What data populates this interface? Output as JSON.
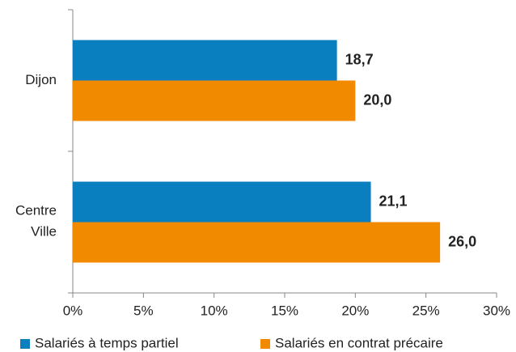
{
  "chart_data": {
    "type": "hbar",
    "categories": [
      "Dijon",
      "Centre Ville"
    ],
    "series": [
      {
        "name": "Salariés à temps partiel",
        "color": "#0a7fbf",
        "values": [
          18.7,
          21.1
        ],
        "value_labels": [
          "18,7",
          "21,1"
        ]
      },
      {
        "name": "Salariés en contrat précaire",
        "color": "#f28a00",
        "values": [
          20.0,
          26.0
        ],
        "value_labels": [
          "20,0",
          "26,0"
        ]
      }
    ],
    "xlim": [
      0,
      30
    ],
    "xticks": [
      {
        "value": 0,
        "label": "0%"
      },
      {
        "value": 5,
        "label": "5%"
      },
      {
        "value": 10,
        "label": "10%"
      },
      {
        "value": 15,
        "label": "15%"
      },
      {
        "value": 20,
        "label": "20%"
      },
      {
        "value": 25,
        "label": "25%"
      },
      {
        "value": 30,
        "label": "30%"
      }
    ],
    "legend": "bottom"
  }
}
